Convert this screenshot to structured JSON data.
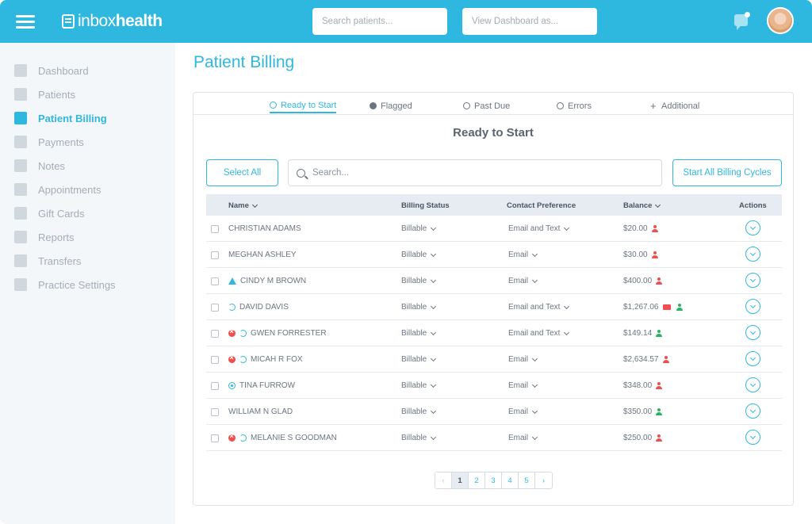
{
  "header": {
    "logo_light": "inbox",
    "logo_bold": "health",
    "search_placeholder": "Search patients...",
    "view_as_placeholder": "View Dashboard as..."
  },
  "sidebar": {
    "items": [
      {
        "label": "Dashboard",
        "icon": "dashboard-icon"
      },
      {
        "label": "Patients",
        "icon": "patients-icon"
      },
      {
        "label": "Patient Billing",
        "icon": "billing-icon",
        "active": true
      },
      {
        "label": "Payments",
        "icon": "credit-card-icon"
      },
      {
        "label": "Notes",
        "icon": "note-icon"
      },
      {
        "label": "Appointments",
        "icon": "calendar-icon"
      },
      {
        "label": "Gift Cards",
        "icon": "gift-icon"
      },
      {
        "label": "Reports",
        "icon": "report-icon"
      },
      {
        "label": "Transfers",
        "icon": "transfer-icon"
      },
      {
        "label": "Practice Settings",
        "icon": "settings-icon"
      }
    ]
  },
  "page": {
    "title": "Patient Billing",
    "section_title": "Ready to Start"
  },
  "tabs": [
    {
      "label": "Ready to Start",
      "icon": "play-icon",
      "active": true
    },
    {
      "label": "Flagged",
      "icon": "flag-icon"
    },
    {
      "label": "Past Due",
      "icon": "clock-icon"
    },
    {
      "label": "Errors",
      "icon": "error-icon"
    },
    {
      "label": "Additional",
      "icon": "plus-icon"
    }
  ],
  "toolbar": {
    "select_all_label": "Select All",
    "search_placeholder": "Search...",
    "start_all_label": "Start All Billing Cycles"
  },
  "table": {
    "columns": [
      "Name",
      "Billing Status",
      "Contact Preference",
      "Balance",
      "Actions"
    ],
    "rows": [
      {
        "name": "CHRISTIAN ADAMS",
        "status_icons": [],
        "billing_status": "Billable",
        "contact": "Email and Text",
        "balance": "$20.00",
        "balance_icons": [
          "person-x-red"
        ]
      },
      {
        "name": "MEGHAN ASHLEY",
        "status_icons": [],
        "billing_status": "Billable",
        "contact": "Email",
        "balance": "$30.00",
        "balance_icons": [
          "person-x-red"
        ]
      },
      {
        "name": "CINDY M BROWN",
        "status_icons": [
          "warning"
        ],
        "billing_status": "Billable",
        "contact": "Email",
        "balance": "$400.00",
        "balance_icons": [
          "person-x-red"
        ]
      },
      {
        "name": "DAVID DAVIS",
        "status_icons": [
          "cycle"
        ],
        "billing_status": "Billable",
        "contact": "Email and Text",
        "balance": "$1,267.06",
        "balance_icons": [
          "card-red",
          "person-green"
        ]
      },
      {
        "name": "GWEN FORRESTER",
        "status_icons": [
          "error",
          "cycle"
        ],
        "billing_status": "Billable",
        "contact": "Email and Text",
        "balance": "$149.14",
        "balance_icons": [
          "person-green"
        ]
      },
      {
        "name": "MICAH R FOX",
        "status_icons": [
          "error",
          "cycle"
        ],
        "billing_status": "Billable",
        "contact": "Email",
        "balance": "$2,634.57",
        "balance_icons": [
          "person-x-red"
        ]
      },
      {
        "name": "TINA FURROW",
        "status_icons": [
          "target"
        ],
        "billing_status": "Billable",
        "contact": "Email",
        "balance": "$348.00",
        "balance_icons": [
          "person-x-red"
        ]
      },
      {
        "name": "WILLIAM N GLAD",
        "status_icons": [],
        "billing_status": "Billable",
        "contact": "Email",
        "balance": "$350.00",
        "balance_icons": [
          "person-green"
        ]
      },
      {
        "name": "MELANIE S GOODMAN",
        "status_icons": [
          "error",
          "cycle"
        ],
        "billing_status": "Billable",
        "contact": "Email",
        "balance": "$250.00",
        "balance_icons": [
          "person-x-red"
        ]
      }
    ]
  },
  "pagination": {
    "prev": "‹",
    "pages": [
      "1",
      "2",
      "3",
      "4",
      "5"
    ],
    "current": "1",
    "next": "›"
  },
  "colors": {
    "brand": "#2fb8df",
    "error": "#ef4f4f",
    "success": "#28b463"
  }
}
